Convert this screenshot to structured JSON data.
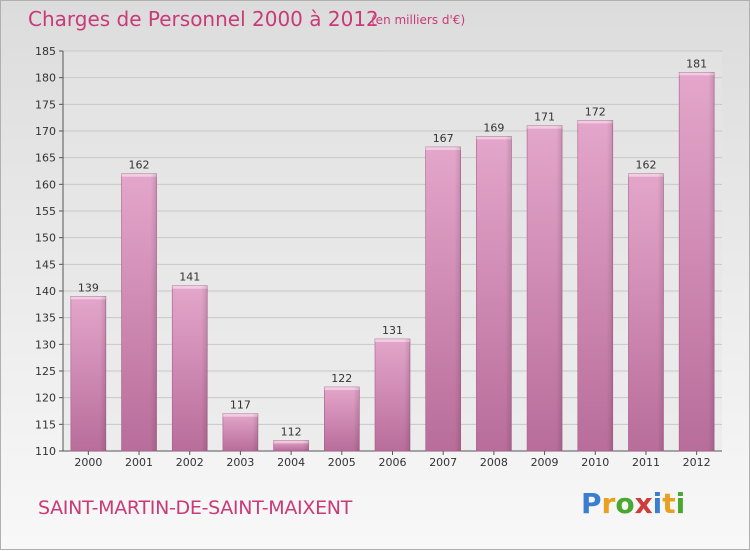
{
  "header": {
    "title": "Charges de Personnel 2000 à 2012",
    "unit": "(en milliers d'€)"
  },
  "footer": {
    "city": "SAINT-MARTIN-DE-SAINT-MAIXENT",
    "logo_letters": [
      "P",
      "r",
      "o",
      "x",
      "i",
      "t",
      "i"
    ],
    "logo_colors": [
      "#3a7fcf",
      "#e8a020",
      "#4aa830",
      "#d03a3a",
      "#3a7fcf",
      "#e8a020",
      "#4aa830"
    ]
  },
  "chart_data": {
    "type": "bar",
    "categories": [
      "2000",
      "2001",
      "2002",
      "2003",
      "2004",
      "2005",
      "2006",
      "2007",
      "2008",
      "2009",
      "2010",
      "2011",
      "2012"
    ],
    "values": [
      139,
      162,
      141,
      117,
      112,
      122,
      131,
      167,
      169,
      171,
      172,
      162,
      181
    ],
    "title": "Charges de Personnel 2000 à 2012",
    "ylim": [
      110,
      185
    ],
    "yticks": [
      110,
      115,
      120,
      125,
      130,
      135,
      140,
      145,
      150,
      155,
      160,
      165,
      170,
      175,
      180,
      185
    ],
    "grid": true,
    "bar_color": "#d98ab8"
  }
}
